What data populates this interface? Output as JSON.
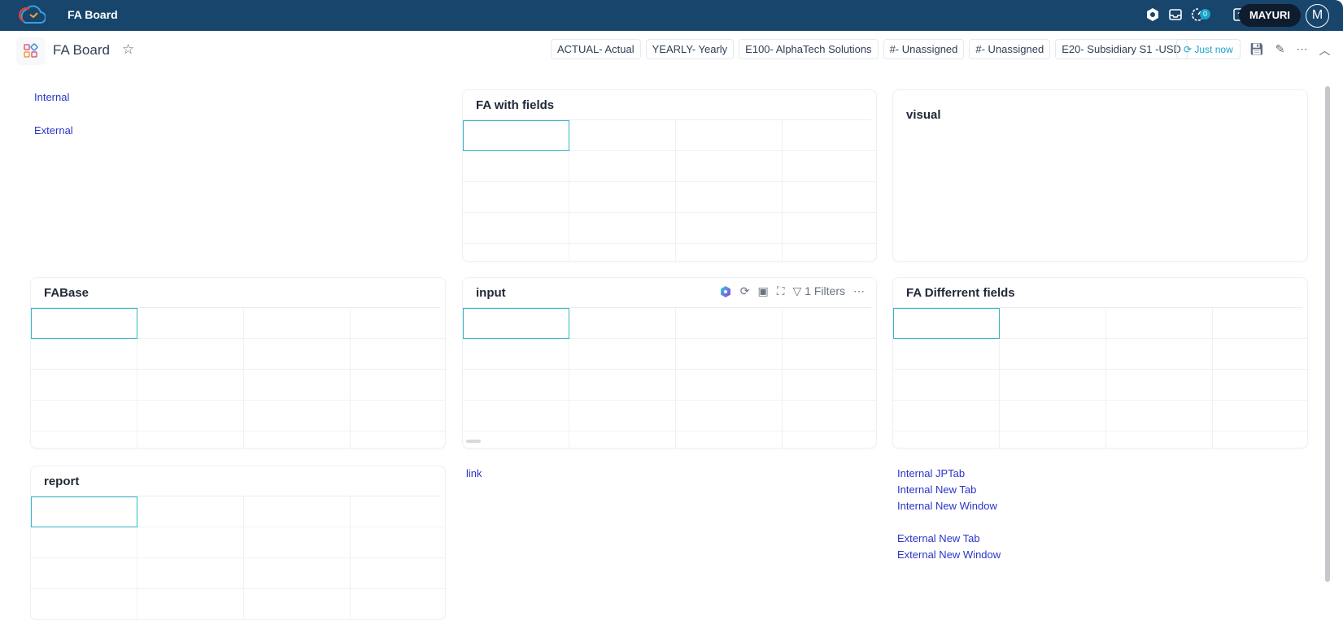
{
  "header": {
    "app_title": "FA Board",
    "user": "MAYURI",
    "avatar_initial": "M",
    "notification_count": "0",
    "icons": [
      "settings-hex-icon",
      "inbox-icon",
      "timer-icon",
      "help-icon"
    ]
  },
  "subheader": {
    "title": "FA Board",
    "chips": [
      "ACTUAL- Actual",
      "YEARLY- Yearly",
      "E100- AlphaTech Solutions",
      "#- Unassigned",
      "#- Unassigned",
      "E20- Subsidiary S1 -USD"
    ],
    "refresh_label": "Just now"
  },
  "links_panel": {
    "items": [
      "Internal",
      "External"
    ]
  },
  "panels": {
    "fa_with_fields": "FA with fields",
    "visual": "visual",
    "fabase": "FABase",
    "input": "input",
    "fa_different": "FA Differrent fields",
    "report": "report"
  },
  "input_toolbar": {
    "filters_label": "1 Filters"
  },
  "link_widget": {
    "label": "link"
  },
  "nav_links": {
    "items": [
      "Internal JPTab",
      "Internal New Tab",
      "Internal New Window",
      "External New Tab",
      "External New Window"
    ]
  },
  "colors": {
    "header_bg": "#17456b",
    "accent": "#1aa3c9",
    "link": "#2a35c9",
    "cell_selected": "#35b5c4"
  }
}
